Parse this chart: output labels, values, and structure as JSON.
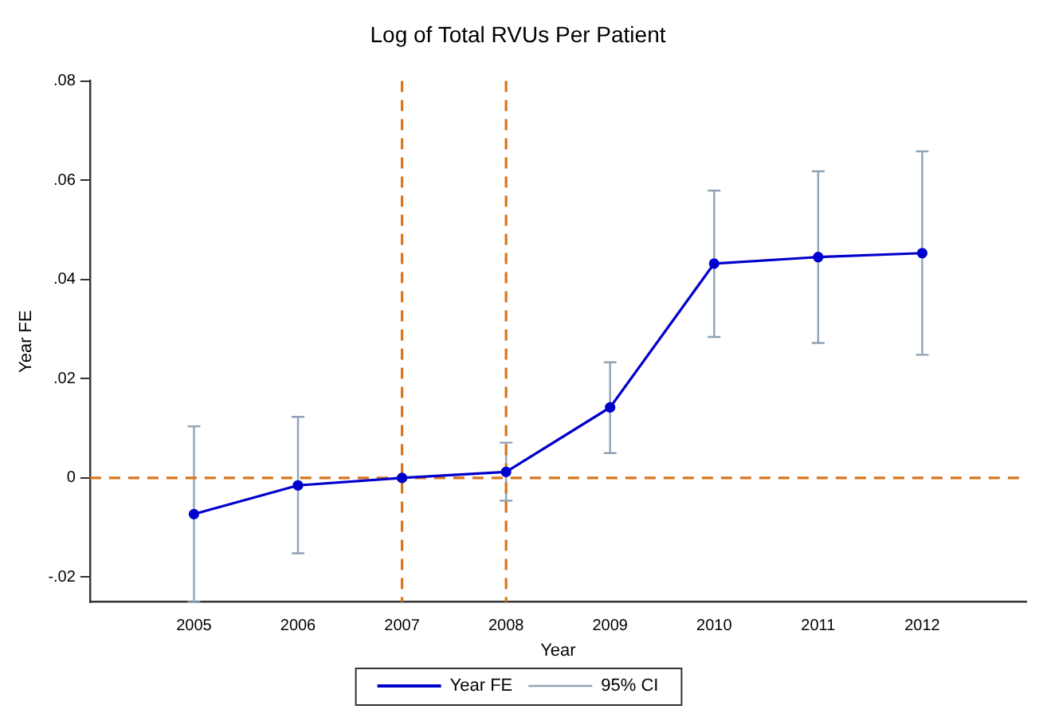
{
  "chart_data": {
    "type": "line",
    "title": "Log of Total RVUs Per Patient",
    "xlabel": "Year",
    "ylabel": "Year FE",
    "x": [
      2005,
      2006,
      2007,
      2008,
      2009,
      2010,
      2011,
      2012
    ],
    "series": [
      {
        "name": "Year FE",
        "color": "#0000cc",
        "values": [
          -0.0073,
          -0.0015,
          0,
          0.0012,
          0.0142,
          0.0432,
          0.0445,
          0.0453
        ],
        "errors": [
          [
            -0.025,
            0.0104
          ],
          [
            -0.0152,
            0.0123
          ],
          null,
          [
            -0.0046,
            0.0071
          ],
          [
            0.005,
            0.0233
          ],
          [
            0.0284,
            0.0579
          ],
          [
            0.0272,
            0.0618
          ],
          [
            0.0248,
            0.0658
          ]
        ]
      }
    ],
    "annotations": [
      "95% CI"
    ],
    "xlim": [
      2004,
      2013
    ],
    "xticks": [
      2005,
      2006,
      2007,
      2008,
      2009,
      2010,
      2011,
      2012
    ],
    "ylim": [
      -0.025,
      0.08
    ],
    "yticks": [
      {
        "value": -0.02,
        "label": "-.02"
      },
      0,
      {
        "value": 0.02,
        "label": ".02"
      },
      {
        "value": 0.04,
        "label": ".04"
      },
      {
        "value": 0.06,
        "label": ".06"
      },
      {
        "value": 0.08,
        "label": ".08"
      }
    ],
    "ref_lines": [
      {
        "axis": "y",
        "value": 0,
        "color": "#d9761c",
        "line_style": "dashed"
      },
      {
        "axis": "x",
        "value": 2007,
        "color": "#d9761c",
        "line_style": "dashed"
      },
      {
        "axis": "x",
        "value": 2008,
        "color": "#d9761c",
        "line_style": "dashed"
      }
    ],
    "grid": false,
    "legend": "bottom",
    "marker": "circle",
    "line_style": "solid"
  }
}
